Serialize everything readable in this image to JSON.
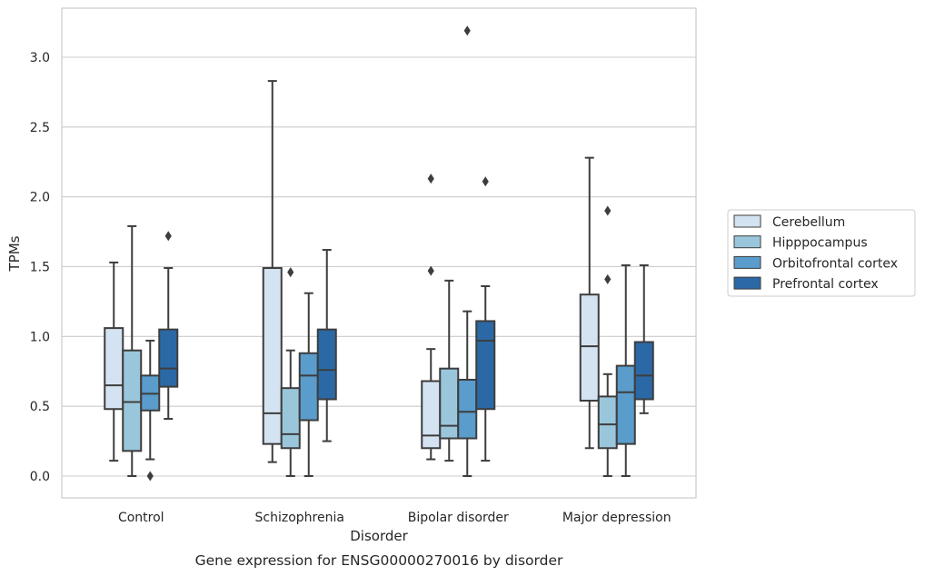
{
  "chart_data": {
    "type": "boxplot",
    "caption": "Gene expression for ENSG00000270016 by disorder",
    "xlabel": "Disorder",
    "ylabel": "TPMs",
    "ylim": [
      -0.15,
      3.35
    ],
    "yticks": [
      "0.0",
      "0.5",
      "1.0",
      "1.5",
      "2.0",
      "2.5",
      "3.0"
    ],
    "ytick_values": [
      0,
      0.5,
      1.0,
      1.5,
      2.0,
      2.5,
      3.0
    ],
    "grid": true,
    "legend_position": "right",
    "categories": [
      "Control",
      "Schizophrenia",
      "Bipolar disorder",
      "Major depression"
    ],
    "series": [
      {
        "name": "Cerebellum",
        "color": "#d4e3f1",
        "boxes": [
          {
            "whislo": 0.11,
            "q1": 0.48,
            "med": 0.65,
            "q3": 1.06,
            "whishi": 1.53,
            "fliers": []
          },
          {
            "whislo": 0.1,
            "q1": 0.23,
            "med": 0.45,
            "q3": 1.49,
            "whishi": 2.83,
            "fliers": []
          },
          {
            "whislo": 0.12,
            "q1": 0.2,
            "med": 0.29,
            "q3": 0.68,
            "whishi": 0.91,
            "fliers": [
              1.47,
              2.13
            ]
          },
          {
            "whislo": 0.2,
            "q1": 0.54,
            "med": 0.93,
            "q3": 1.3,
            "whishi": 2.28,
            "fliers": []
          }
        ]
      },
      {
        "name": "Hipppocampus",
        "color": "#9ac6dc",
        "boxes": [
          {
            "whislo": 0.0,
            "q1": 0.18,
            "med": 0.53,
            "q3": 0.9,
            "whishi": 1.79,
            "fliers": []
          },
          {
            "whislo": 0.0,
            "q1": 0.2,
            "med": 0.3,
            "q3": 0.63,
            "whishi": 0.9,
            "fliers": [
              1.46
            ]
          },
          {
            "whislo": 0.11,
            "q1": 0.27,
            "med": 0.36,
            "q3": 0.77,
            "whishi": 1.4,
            "fliers": []
          },
          {
            "whislo": 0.0,
            "q1": 0.2,
            "med": 0.37,
            "q3": 0.57,
            "whishi": 0.73,
            "fliers": [
              1.41,
              1.9
            ]
          }
        ]
      },
      {
        "name": "Orbitofrontal cortex",
        "color": "#5a9ccb",
        "boxes": [
          {
            "whislo": 0.12,
            "q1": 0.47,
            "med": 0.59,
            "q3": 0.72,
            "whishi": 0.97,
            "fliers": [
              0.0
            ]
          },
          {
            "whislo": 0.0,
            "q1": 0.4,
            "med": 0.72,
            "q3": 0.88,
            "whishi": 1.31,
            "fliers": []
          },
          {
            "whislo": 0.0,
            "q1": 0.27,
            "med": 0.46,
            "q3": 0.69,
            "whishi": 1.18,
            "fliers": [
              3.19
            ]
          },
          {
            "whislo": 0.0,
            "q1": 0.23,
            "med": 0.6,
            "q3": 0.79,
            "whishi": 1.51,
            "fliers": []
          }
        ]
      },
      {
        "name": "Prefrontal cortex",
        "color": "#2a69a6",
        "boxes": [
          {
            "whislo": 0.41,
            "q1": 0.64,
            "med": 0.77,
            "q3": 1.05,
            "whishi": 1.49,
            "fliers": [
              1.72
            ]
          },
          {
            "whislo": 0.25,
            "q1": 0.55,
            "med": 0.76,
            "q3": 1.05,
            "whishi": 1.62,
            "fliers": []
          },
          {
            "whislo": 0.11,
            "q1": 0.48,
            "med": 0.97,
            "q3": 1.11,
            "whishi": 1.36,
            "fliers": [
              2.11
            ]
          },
          {
            "whislo": 0.45,
            "q1": 0.55,
            "med": 0.72,
            "q3": 0.96,
            "whishi": 1.51,
            "fliers": []
          }
        ]
      }
    ]
  }
}
